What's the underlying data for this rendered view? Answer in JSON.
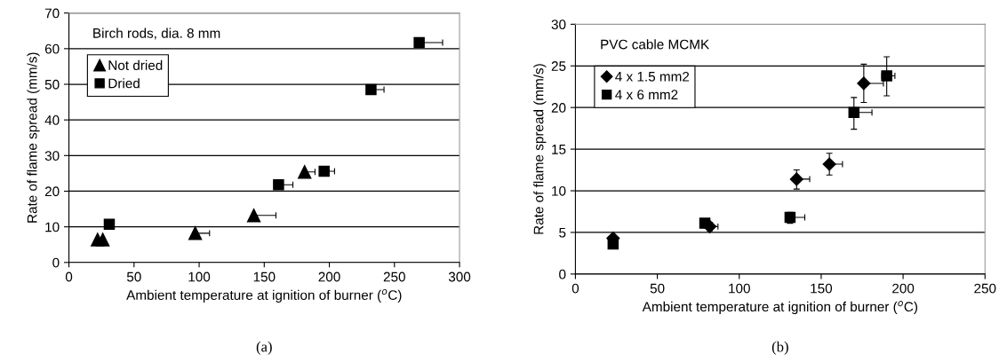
{
  "chart_data": [
    {
      "type": "scatter",
      "xlabel": "Ambient temperature at ignition of burner ($^{o}$C)",
      "ylabel": "Rate of flame spread (mm/s)",
      "xlim": [
        0,
        300
      ],
      "xticks": [
        0,
        50,
        100,
        150,
        200,
        250,
        300
      ],
      "ylim": [
        0,
        70
      ],
      "yticks": [
        0,
        10,
        20,
        30,
        40,
        50,
        60,
        70
      ],
      "grid": "y",
      "legend": "top left",
      "annotations": [
        "Birch rods, dia. 8 mm",
        "(a)"
      ],
      "series": [
        {
          "name": "Not dried",
          "color": "#000000",
          "marker": "triangle",
          "x": [
            22,
            26,
            97,
            142,
            181
          ],
          "values": [
            6.4,
            6.4,
            8.2,
            13.2,
            25.4
          ],
          "xerrors": [
            null,
            null,
            [
              97,
              108
            ],
            [
              142,
              159
            ],
            [
              181,
              189
            ]
          ]
        },
        {
          "name": "Dried",
          "color": "#000000",
          "marker": "square",
          "x": [
            31,
            161,
            196,
            232,
            269
          ],
          "values": [
            10.7,
            21.8,
            25.6,
            48.5,
            61.7
          ],
          "xerrors": [
            null,
            [
              161,
              172
            ],
            [
              196,
              204
            ],
            [
              232,
              242
            ],
            [
              269,
              287
            ]
          ]
        }
      ]
    },
    {
      "type": "scatter",
      "xlabel": "Ambient temperature at ignition of burner ($^{o}$C)",
      "ylabel": "Rate of flame spread (mm/s)",
      "xlim": [
        0,
        250
      ],
      "xticks": [
        0,
        50,
        100,
        150,
        200,
        250
      ],
      "ylim": [
        0,
        30
      ],
      "yticks": [
        0,
        5,
        10,
        15,
        20,
        25,
        30
      ],
      "grid": "y",
      "legend": "top left",
      "annotations": [
        "PVC cable MCMK",
        "(b)"
      ],
      "series": [
        {
          "name": "4 x 1.5 mm2",
          "color": "#000000",
          "marker": "diamond",
          "x": [
            23,
            82,
            135,
            155,
            176
          ],
          "values": [
            4.3,
            5.7,
            11.4,
            13.2,
            22.9
          ],
          "errors": [
            null,
            [
              5.2,
              6.2
            ],
            [
              10.2,
              12.5
            ],
            [
              11.9,
              14.5
            ],
            [
              20.6,
              25.2
            ]
          ],
          "xerrors": [
            null,
            [
              80,
              87
            ],
            [
              135,
              143
            ],
            [
              155,
              163
            ],
            [
              176,
              188
            ]
          ]
        },
        {
          "name": "4 x 6 mm2",
          "color": "#000000",
          "marker": "square",
          "x": [
            23,
            79,
            131,
            170,
            190
          ],
          "values": [
            3.6,
            6.1,
            6.8,
            19.4,
            23.8
          ],
          "errors": [
            null,
            null,
            [
              6.1,
              7.4
            ],
            [
              17.4,
              21.2
            ],
            [
              21.4,
              26.1
            ]
          ],
          "xerrors": [
            null,
            null,
            [
              131,
              140
            ],
            [
              170,
              181
            ],
            [
              187,
              195
            ]
          ]
        }
      ]
    }
  ]
}
